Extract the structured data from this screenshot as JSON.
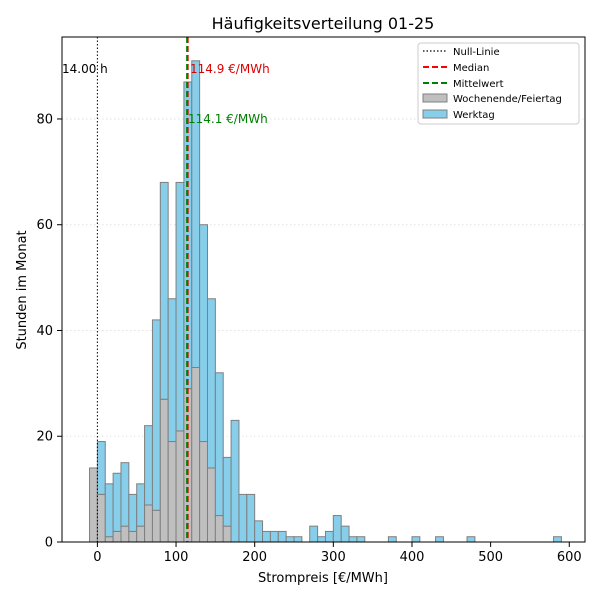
{
  "chart_data": {
    "type": "bar",
    "title": "Häufigkeitsverteilung 01-25",
    "xlabel": "Strompreis [€/MWh]",
    "ylabel": "Stunden im Monat",
    "xlim": [
      -45,
      620
    ],
    "ylim": [
      0,
      95.5
    ],
    "xticks": [
      0,
      100,
      200,
      300,
      400,
      500,
      600
    ],
    "yticks": [
      0,
      20,
      40,
      60,
      80
    ],
    "grid": "horizontal-dotted",
    "bin_width": 10,
    "bin_starts": [
      -10,
      0,
      10,
      20,
      30,
      40,
      50,
      60,
      70,
      80,
      90,
      100,
      110,
      120,
      130,
      140,
      150,
      160,
      170,
      180,
      190,
      200,
      210,
      220,
      230,
      240,
      250,
      260,
      270,
      280,
      290,
      300,
      310,
      320,
      330,
      370,
      400,
      430,
      470,
      580
    ],
    "series": [
      {
        "name": "Wochenende/Feiertag",
        "color": "#bfbfbf",
        "values": [
          14,
          9,
          1,
          2,
          3,
          2,
          3,
          7,
          6,
          27,
          19,
          21,
          29,
          33,
          19,
          14,
          5,
          3,
          0,
          0,
          0,
          0,
          0,
          0,
          0,
          0,
          0,
          0,
          0,
          0,
          0,
          0,
          0,
          0,
          0,
          0,
          0,
          0,
          0,
          0
        ]
      },
      {
        "name": "Werktag",
        "color": "#87ceeb",
        "values": [
          0,
          10,
          10,
          11,
          12,
          7,
          8,
          15,
          36,
          41,
          27,
          47,
          58,
          58,
          41,
          32,
          27,
          13,
          23,
          9,
          9,
          4,
          2,
          2,
          2,
          1,
          1,
          0,
          3,
          1,
          2,
          5,
          3,
          1,
          1,
          1,
          1,
          1,
          1,
          1
        ]
      }
    ],
    "reference_lines": [
      {
        "name": "Null-Linie",
        "x": 0,
        "color": "#000000",
        "style": "dotted"
      },
      {
        "name": "Median",
        "x": 114.9,
        "color": "#ff0000",
        "style": "dashed"
      },
      {
        "name": "Mittelwert",
        "x": 114.1,
        "color": "#008000",
        "style": "dashed"
      }
    ],
    "annotations": {
      "zero_hours": "14.00 h",
      "median_label": "114.9 €/MWh",
      "mean_label": "114.1 €/MWh",
      "median_color": "#dd0000",
      "mean_color": "#008000"
    },
    "legend": {
      "position": "top-right",
      "entries": [
        "Null-Linie",
        "Median",
        "Mittelwert",
        "Wochenende/Feiertag",
        "Werktag"
      ]
    }
  }
}
